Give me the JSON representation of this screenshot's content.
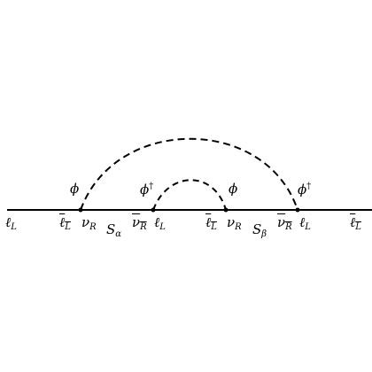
{
  "diagram": {
    "labels": {
      "lepton_left_end": {
        "main": "ℓ",
        "sub": "L"
      },
      "lepton_right_end": {
        "main": "ℓ",
        "sub": "L"
      },
      "v1_left_fermion": {
        "main": "ℓ",
        "sub": "L"
      },
      "v1_right_fermion": {
        "main": "ν",
        "sub": "R"
      },
      "v2_left_fermion": {
        "main": "ν",
        "sub": "R"
      },
      "v2_right_fermion": {
        "main": "ℓ",
        "sub": "L"
      },
      "v3_left_fermion": {
        "main": "ℓ",
        "sub": "L"
      },
      "v3_right_fermion": {
        "main": "ν",
        "sub": "R"
      },
      "v4_left_fermion": {
        "main": "ν",
        "sub": "R"
      },
      "v4_right_fermion": {
        "main": "ℓ",
        "sub": "L"
      },
      "propagator_alpha": {
        "main": "S",
        "sub": "α"
      },
      "propagator_beta": {
        "main": "S",
        "sub": "β"
      },
      "scalar_v1": {
        "main": "ϕ",
        "sup": ""
      },
      "scalar_v2": {
        "main": "ϕ",
        "sup": "†"
      },
      "scalar_v3": {
        "main": "ϕ",
        "sup": ""
      },
      "scalar_v4": {
        "main": "ϕ",
        "sup": "†"
      }
    }
  }
}
